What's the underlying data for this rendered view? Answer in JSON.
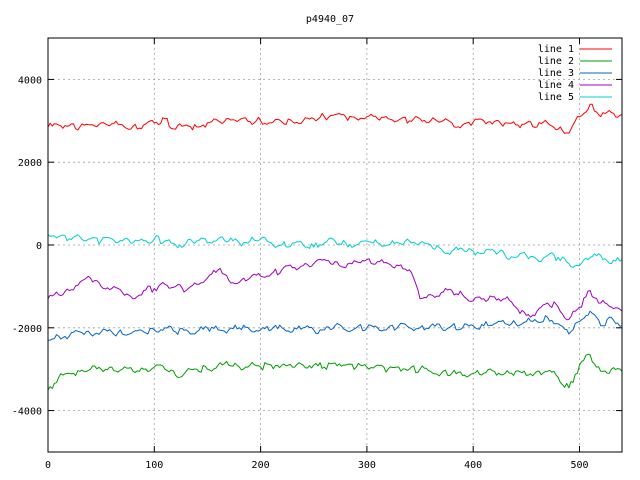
{
  "chart_data": {
    "type": "line",
    "title": "p4940_07",
    "xlabel": "",
    "ylabel": "",
    "xlim": [
      0,
      540
    ],
    "ylim": [
      -5000,
      5000
    ],
    "xticks": [
      0,
      100,
      200,
      300,
      400,
      500
    ],
    "yticks": [
      -4000,
      -2000,
      0,
      2000,
      4000
    ],
    "xtick_labels": [
      "0",
      "100",
      "200",
      "300",
      "400",
      "500"
    ],
    "ytick_labels": [
      "-4000",
      "-2000",
      "0",
      "2000",
      "4000"
    ],
    "grid": true,
    "legend_position": "top-right",
    "series": [
      {
        "name": "line 1",
        "color": "#ff0000",
        "x": [
          0,
          10,
          20,
          30,
          40,
          50,
          60,
          70,
          80,
          90,
          100,
          110,
          120,
          130,
          140,
          150,
          160,
          170,
          180,
          190,
          200,
          210,
          220,
          230,
          240,
          250,
          260,
          270,
          280,
          290,
          300,
          310,
          320,
          330,
          340,
          350,
          360,
          370,
          380,
          390,
          400,
          410,
          420,
          430,
          440,
          450,
          460,
          470,
          480,
          490,
          500,
          510,
          520,
          530,
          540
        ],
        "y": [
          2850,
          2900,
          2880,
          2850,
          2900,
          2950,
          2930,
          2900,
          2870,
          2900,
          2950,
          3050,
          2800,
          2900,
          2850,
          2950,
          3000,
          3050,
          3020,
          2980,
          3000,
          2950,
          2970,
          2980,
          3000,
          3050,
          3100,
          3150,
          3100,
          3050,
          3100,
          3050,
          3050,
          3020,
          3000,
          3050,
          3000,
          2980,
          2950,
          2900,
          2970,
          3000,
          2980,
          2950,
          2900,
          2950,
          2850,
          2950,
          2800,
          2700,
          3100,
          3400,
          3100,
          3200,
          3150
        ]
      },
      {
        "name": "line 2",
        "color": "#00a000",
        "x": [
          0,
          10,
          20,
          30,
          40,
          50,
          60,
          70,
          80,
          90,
          100,
          110,
          120,
          130,
          140,
          150,
          160,
          170,
          180,
          190,
          200,
          210,
          220,
          230,
          240,
          250,
          260,
          270,
          280,
          290,
          300,
          310,
          320,
          330,
          340,
          350,
          360,
          370,
          380,
          390,
          400,
          410,
          420,
          430,
          440,
          450,
          460,
          470,
          480,
          490,
          500,
          510,
          520,
          530,
          540
        ],
        "y": [
          -3500,
          -3200,
          -3100,
          -3050,
          -3000,
          -3000,
          -2950,
          -3000,
          -3050,
          -3000,
          -2950,
          -3000,
          -3150,
          -3050,
          -3000,
          -3000,
          -2900,
          -2900,
          -2950,
          -2900,
          -2950,
          -2900,
          -2900,
          -2950,
          -2900,
          -2900,
          -2950,
          -2850,
          -2900,
          -2950,
          -2950,
          -2900,
          -3000,
          -2950,
          -3000,
          -3000,
          -3050,
          -3100,
          -3100,
          -3150,
          -3100,
          -3100,
          -3050,
          -3100,
          -3050,
          -3150,
          -3050,
          -3050,
          -3200,
          -3450,
          -2900,
          -2650,
          -3050,
          -3000,
          -3050
        ]
      },
      {
        "name": "line 3",
        "color": "#0066cc",
        "x": [
          0,
          10,
          20,
          30,
          40,
          50,
          60,
          70,
          80,
          90,
          100,
          110,
          120,
          130,
          140,
          150,
          160,
          170,
          180,
          190,
          200,
          210,
          220,
          230,
          240,
          250,
          260,
          270,
          280,
          290,
          300,
          310,
          320,
          330,
          340,
          350,
          360,
          370,
          380,
          390,
          400,
          410,
          420,
          430,
          440,
          450,
          460,
          470,
          480,
          490,
          500,
          510,
          520,
          530,
          540
        ],
        "y": [
          -2300,
          -2200,
          -2200,
          -2100,
          -2150,
          -2100,
          -2100,
          -2150,
          -2100,
          -2100,
          -2050,
          -2000,
          -2100,
          -2050,
          -2100,
          -2000,
          -2050,
          -2050,
          -2000,
          -2050,
          -2050,
          -2050,
          -2000,
          -2100,
          -2000,
          -2050,
          -2050,
          -1950,
          -2050,
          -2000,
          -2000,
          -2000,
          -2000,
          -1950,
          -2000,
          -2000,
          -1950,
          -2000,
          -1950,
          -2000,
          -1950,
          -1950,
          -1900,
          -1900,
          -1900,
          -1850,
          -1850,
          -1750,
          -1900,
          -2150,
          -1850,
          -1600,
          -1950,
          -1750,
          -1950
        ]
      },
      {
        "name": "line 4",
        "color": "#a000c0",
        "x": [
          0,
          10,
          20,
          30,
          40,
          50,
          60,
          70,
          80,
          90,
          100,
          110,
          120,
          130,
          140,
          150,
          160,
          170,
          180,
          190,
          200,
          210,
          220,
          230,
          240,
          250,
          260,
          270,
          280,
          290,
          300,
          310,
          320,
          330,
          340,
          350,
          360,
          370,
          380,
          390,
          400,
          410,
          420,
          430,
          440,
          450,
          460,
          470,
          480,
          490,
          500,
          510,
          520,
          530,
          540
        ],
        "y": [
          -1300,
          -1200,
          -1100,
          -900,
          -800,
          -1000,
          -1050,
          -1150,
          -1300,
          -1100,
          -1050,
          -950,
          -1000,
          -1100,
          -950,
          -800,
          -600,
          -850,
          -900,
          -800,
          -750,
          -700,
          -600,
          -550,
          -500,
          -450,
          -350,
          -400,
          -550,
          -400,
          -350,
          -400,
          -450,
          -500,
          -600,
          -1300,
          -1200,
          -1150,
          -1100,
          -1200,
          -1350,
          -1300,
          -1250,
          -1300,
          -1500,
          -1700,
          -1600,
          -1400,
          -1500,
          -1800,
          -1500,
          -1100,
          -1400,
          -1500,
          -1600
        ]
      },
      {
        "name": "line 5",
        "color": "#00d0d0",
        "x": [
          0,
          10,
          20,
          30,
          40,
          50,
          60,
          70,
          80,
          90,
          100,
          110,
          120,
          130,
          140,
          150,
          160,
          170,
          180,
          190,
          200,
          210,
          220,
          230,
          240,
          250,
          260,
          270,
          280,
          290,
          300,
          310,
          320,
          330,
          340,
          350,
          360,
          370,
          380,
          390,
          400,
          410,
          420,
          430,
          440,
          450,
          460,
          470,
          480,
          490,
          500,
          510,
          520,
          530,
          540
        ],
        "y": [
          250,
          200,
          150,
          200,
          150,
          100,
          150,
          100,
          50,
          100,
          150,
          100,
          0,
          50,
          100,
          50,
          150,
          100,
          50,
          100,
          150,
          50,
          0,
          50,
          0,
          -50,
          50,
          100,
          50,
          0,
          100,
          50,
          0,
          50,
          100,
          50,
          0,
          -100,
          -150,
          -100,
          -150,
          -200,
          -150,
          -250,
          -300,
          -250,
          -350,
          -250,
          -300,
          -450,
          -500,
          -300,
          -250,
          -450,
          -350
        ]
      }
    ]
  }
}
